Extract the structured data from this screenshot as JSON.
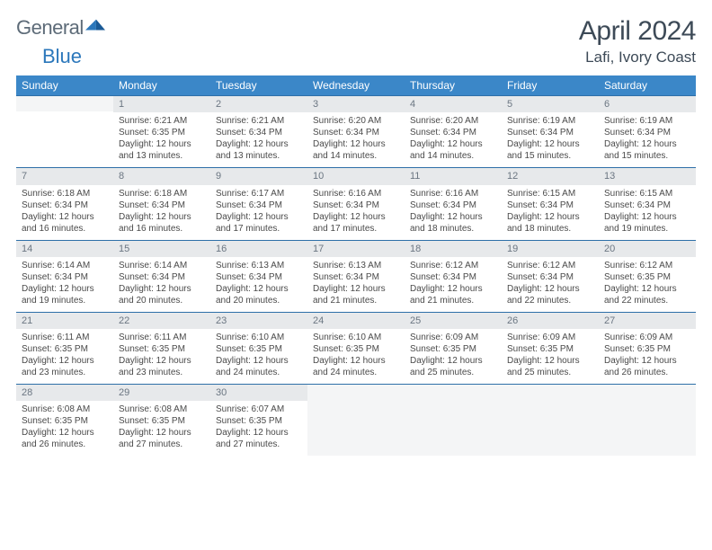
{
  "brand": {
    "part1": "General",
    "part2": "Blue"
  },
  "title": "April 2024",
  "location": "Lafi, Ivory Coast",
  "colors": {
    "header_bg": "#3b87c8",
    "header_text": "#ffffff",
    "daynum_bg": "#e7e9eb",
    "daynum_text": "#6b7682",
    "cell_border_top": "#2e6fa8",
    "blank_bg": "#f4f5f6",
    "body_text": "#4a4a4a",
    "title_text": "#3d4a57",
    "logo_gray": "#5d6b78",
    "logo_blue": "#2b77bb"
  },
  "day_headers": [
    "Sunday",
    "Monday",
    "Tuesday",
    "Wednesday",
    "Thursday",
    "Friday",
    "Saturday"
  ],
  "weeks": [
    [
      {
        "blank": true
      },
      {
        "num": "1",
        "sunrise": "Sunrise: 6:21 AM",
        "sunset": "Sunset: 6:35 PM",
        "daylight1": "Daylight: 12 hours",
        "daylight2": "and 13 minutes."
      },
      {
        "num": "2",
        "sunrise": "Sunrise: 6:21 AM",
        "sunset": "Sunset: 6:34 PM",
        "daylight1": "Daylight: 12 hours",
        "daylight2": "and 13 minutes."
      },
      {
        "num": "3",
        "sunrise": "Sunrise: 6:20 AM",
        "sunset": "Sunset: 6:34 PM",
        "daylight1": "Daylight: 12 hours",
        "daylight2": "and 14 minutes."
      },
      {
        "num": "4",
        "sunrise": "Sunrise: 6:20 AM",
        "sunset": "Sunset: 6:34 PM",
        "daylight1": "Daylight: 12 hours",
        "daylight2": "and 14 minutes."
      },
      {
        "num": "5",
        "sunrise": "Sunrise: 6:19 AM",
        "sunset": "Sunset: 6:34 PM",
        "daylight1": "Daylight: 12 hours",
        "daylight2": "and 15 minutes."
      },
      {
        "num": "6",
        "sunrise": "Sunrise: 6:19 AM",
        "sunset": "Sunset: 6:34 PM",
        "daylight1": "Daylight: 12 hours",
        "daylight2": "and 15 minutes."
      }
    ],
    [
      {
        "num": "7",
        "sunrise": "Sunrise: 6:18 AM",
        "sunset": "Sunset: 6:34 PM",
        "daylight1": "Daylight: 12 hours",
        "daylight2": "and 16 minutes."
      },
      {
        "num": "8",
        "sunrise": "Sunrise: 6:18 AM",
        "sunset": "Sunset: 6:34 PM",
        "daylight1": "Daylight: 12 hours",
        "daylight2": "and 16 minutes."
      },
      {
        "num": "9",
        "sunrise": "Sunrise: 6:17 AM",
        "sunset": "Sunset: 6:34 PM",
        "daylight1": "Daylight: 12 hours",
        "daylight2": "and 17 minutes."
      },
      {
        "num": "10",
        "sunrise": "Sunrise: 6:16 AM",
        "sunset": "Sunset: 6:34 PM",
        "daylight1": "Daylight: 12 hours",
        "daylight2": "and 17 minutes."
      },
      {
        "num": "11",
        "sunrise": "Sunrise: 6:16 AM",
        "sunset": "Sunset: 6:34 PM",
        "daylight1": "Daylight: 12 hours",
        "daylight2": "and 18 minutes."
      },
      {
        "num": "12",
        "sunrise": "Sunrise: 6:15 AM",
        "sunset": "Sunset: 6:34 PM",
        "daylight1": "Daylight: 12 hours",
        "daylight2": "and 18 minutes."
      },
      {
        "num": "13",
        "sunrise": "Sunrise: 6:15 AM",
        "sunset": "Sunset: 6:34 PM",
        "daylight1": "Daylight: 12 hours",
        "daylight2": "and 19 minutes."
      }
    ],
    [
      {
        "num": "14",
        "sunrise": "Sunrise: 6:14 AM",
        "sunset": "Sunset: 6:34 PM",
        "daylight1": "Daylight: 12 hours",
        "daylight2": "and 19 minutes."
      },
      {
        "num": "15",
        "sunrise": "Sunrise: 6:14 AM",
        "sunset": "Sunset: 6:34 PM",
        "daylight1": "Daylight: 12 hours",
        "daylight2": "and 20 minutes."
      },
      {
        "num": "16",
        "sunrise": "Sunrise: 6:13 AM",
        "sunset": "Sunset: 6:34 PM",
        "daylight1": "Daylight: 12 hours",
        "daylight2": "and 20 minutes."
      },
      {
        "num": "17",
        "sunrise": "Sunrise: 6:13 AM",
        "sunset": "Sunset: 6:34 PM",
        "daylight1": "Daylight: 12 hours",
        "daylight2": "and 21 minutes."
      },
      {
        "num": "18",
        "sunrise": "Sunrise: 6:12 AM",
        "sunset": "Sunset: 6:34 PM",
        "daylight1": "Daylight: 12 hours",
        "daylight2": "and 21 minutes."
      },
      {
        "num": "19",
        "sunrise": "Sunrise: 6:12 AM",
        "sunset": "Sunset: 6:34 PM",
        "daylight1": "Daylight: 12 hours",
        "daylight2": "and 22 minutes."
      },
      {
        "num": "20",
        "sunrise": "Sunrise: 6:12 AM",
        "sunset": "Sunset: 6:35 PM",
        "daylight1": "Daylight: 12 hours",
        "daylight2": "and 22 minutes."
      }
    ],
    [
      {
        "num": "21",
        "sunrise": "Sunrise: 6:11 AM",
        "sunset": "Sunset: 6:35 PM",
        "daylight1": "Daylight: 12 hours",
        "daylight2": "and 23 minutes."
      },
      {
        "num": "22",
        "sunrise": "Sunrise: 6:11 AM",
        "sunset": "Sunset: 6:35 PM",
        "daylight1": "Daylight: 12 hours",
        "daylight2": "and 23 minutes."
      },
      {
        "num": "23",
        "sunrise": "Sunrise: 6:10 AM",
        "sunset": "Sunset: 6:35 PM",
        "daylight1": "Daylight: 12 hours",
        "daylight2": "and 24 minutes."
      },
      {
        "num": "24",
        "sunrise": "Sunrise: 6:10 AM",
        "sunset": "Sunset: 6:35 PM",
        "daylight1": "Daylight: 12 hours",
        "daylight2": "and 24 minutes."
      },
      {
        "num": "25",
        "sunrise": "Sunrise: 6:09 AM",
        "sunset": "Sunset: 6:35 PM",
        "daylight1": "Daylight: 12 hours",
        "daylight2": "and 25 minutes."
      },
      {
        "num": "26",
        "sunrise": "Sunrise: 6:09 AM",
        "sunset": "Sunset: 6:35 PM",
        "daylight1": "Daylight: 12 hours",
        "daylight2": "and 25 minutes."
      },
      {
        "num": "27",
        "sunrise": "Sunrise: 6:09 AM",
        "sunset": "Sunset: 6:35 PM",
        "daylight1": "Daylight: 12 hours",
        "daylight2": "and 26 minutes."
      }
    ],
    [
      {
        "num": "28",
        "sunrise": "Sunrise: 6:08 AM",
        "sunset": "Sunset: 6:35 PM",
        "daylight1": "Daylight: 12 hours",
        "daylight2": "and 26 minutes."
      },
      {
        "num": "29",
        "sunrise": "Sunrise: 6:08 AM",
        "sunset": "Sunset: 6:35 PM",
        "daylight1": "Daylight: 12 hours",
        "daylight2": "and 27 minutes."
      },
      {
        "num": "30",
        "sunrise": "Sunrise: 6:07 AM",
        "sunset": "Sunset: 6:35 PM",
        "daylight1": "Daylight: 12 hours",
        "daylight2": "and 27 minutes."
      },
      {
        "trailing": true
      },
      {
        "trailing": true
      },
      {
        "trailing": true
      },
      {
        "trailing": true
      }
    ]
  ]
}
